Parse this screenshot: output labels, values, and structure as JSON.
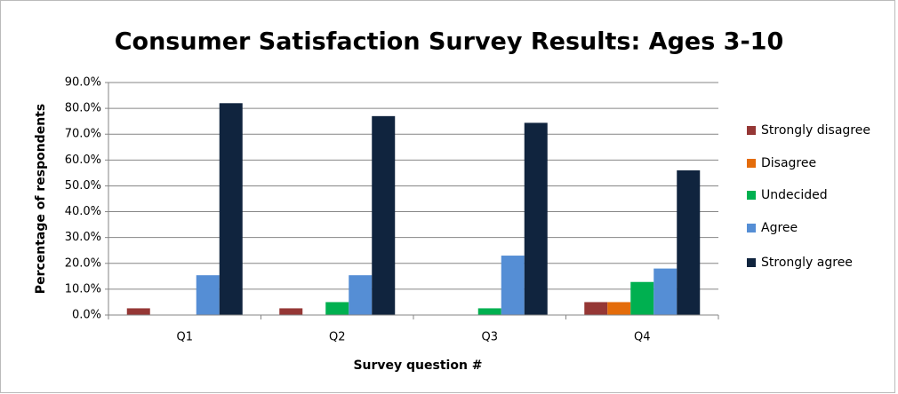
{
  "chart_data": {
    "type": "bar",
    "title": "Consumer Satisfaction Survey Results: Ages 3-10",
    "x_label": "Survey question #",
    "y_label": "Percentage of respondents",
    "categories": [
      "Q1",
      "Q2",
      "Q3",
      "Q4"
    ],
    "series": [
      {
        "name": "Strongly disagree",
        "color": "#953735",
        "values": [
          2.6,
          2.6,
          0,
          5
        ]
      },
      {
        "name": "Disagree",
        "color": "#e46c0a",
        "values": [
          0,
          0,
          0,
          5
        ]
      },
      {
        "name": "Undecided",
        "color": "#00b050",
        "values": [
          0,
          5,
          2.6,
          12.8
        ]
      },
      {
        "name": "Agree",
        "color": "#558ed5",
        "values": [
          15.4,
          15.4,
          23,
          18
        ]
      },
      {
        "name": "Strongly agree",
        "color": "#10243e",
        "values": [
          82,
          77,
          74.4,
          56
        ]
      }
    ],
    "ylim": [
      0,
      90
    ],
    "yticks": [
      {
        "value": 0,
        "label": "0.0%"
      },
      {
        "value": 10,
        "label": "10.0%"
      },
      {
        "value": 20,
        "label": "20.0%"
      },
      {
        "value": 30,
        "label": "30.0%"
      },
      {
        "value": 40,
        "label": "40.0%"
      },
      {
        "value": 50,
        "label": "50.0%"
      },
      {
        "value": 60,
        "label": "60.0%"
      },
      {
        "value": 70,
        "label": "70.0%"
      },
      {
        "value": 80,
        "label": "80.0%"
      },
      {
        "value": 90,
        "label": "90.0%"
      }
    ],
    "grid": true,
    "legend": "right"
  }
}
